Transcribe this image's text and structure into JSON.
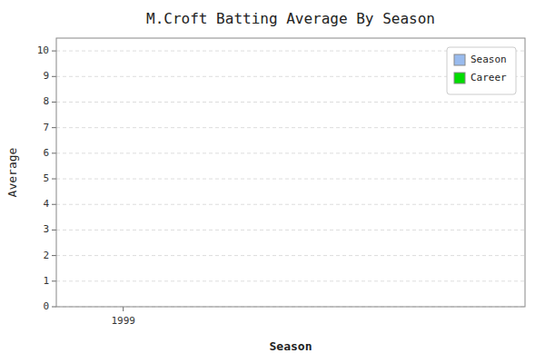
{
  "chart_data": {
    "type": "bar",
    "title": "M.Croft Batting Average By Season",
    "xlabel": "Season",
    "ylabel": "Average",
    "x": [],
    "series": [
      {
        "name": "Season",
        "color": "#99bbee",
        "values": []
      },
      {
        "name": "Career",
        "color": "#00dd00",
        "values": []
      }
    ],
    "xlim": [
      1998.5,
      2002
    ],
    "xticks": [
      1999
    ],
    "ylim": [
      0,
      10.5
    ],
    "yticks": [
      0,
      1,
      2,
      3,
      4,
      5,
      6,
      7,
      8,
      9,
      10
    ],
    "grid": "y",
    "legend": "upper right"
  }
}
